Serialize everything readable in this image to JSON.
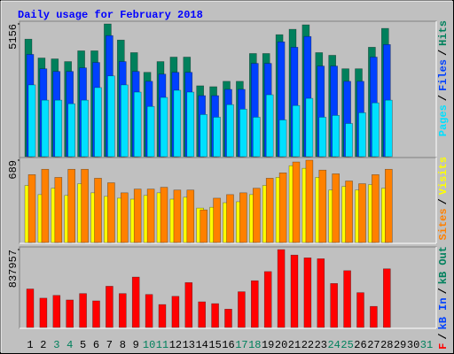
{
  "chart_data": [
    {
      "type": "bar",
      "title": "Daily usage for February 2018",
      "ylim": [
        0,
        5156
      ],
      "yticks": [
        5156
      ],
      "legend_separator": "/",
      "series": [
        {
          "name": "Hits",
          "color": "#00805c",
          "values": [
            4564,
            3832,
            3797,
            3693,
            4111,
            4111,
            5156,
            4529,
            4041,
            3275,
            3693,
            3867,
            3867,
            2752,
            2717,
            2926,
            2926,
            4006,
            4006,
            4738,
            4947,
            5121,
            4041,
            3937,
            3414,
            3414,
            4250,
            4982,
            null,
            null,
            null
          ]
        },
        {
          "name": "Files",
          "color": "#0040ff",
          "values": [
            3972,
            3414,
            3310,
            3310,
            3449,
            3658,
            4703,
            3693,
            3310,
            2926,
            3205,
            3275,
            3275,
            2369,
            2369,
            2613,
            2613,
            3623,
            3623,
            4459,
            4250,
            4668,
            3519,
            3519,
            2926,
            2926,
            3867,
            4355,
            null,
            null,
            null
          ]
        },
        {
          "name": "Pages",
          "color": "#00e0ff",
          "values": [
            2787,
            2195,
            2195,
            2056,
            2195,
            2683,
            3136,
            2787,
            2508,
            1951,
            2300,
            2578,
            2508,
            1637,
            1533,
            2021,
            1846,
            1533,
            2404,
            1428,
            1986,
            2265,
            1533,
            1603,
            1289,
            1707,
            2090,
            2195,
            null,
            null,
            null
          ]
        }
      ]
    },
    {
      "type": "bar",
      "ylim": [
        0,
        689
      ],
      "yticks": [
        689
      ],
      "legend_separator": "/",
      "series": [
        {
          "name": "Visits",
          "color": "#ffff00",
          "values": [
            477,
            401,
            454,
            394,
            492,
            416,
            386,
            371,
            363,
            394,
            416,
            363,
            379,
            288,
            295,
            333,
            341,
            401,
            477,
            545,
            643,
            621,
            545,
            439,
            469,
            439,
            484,
            454,
            null,
            null,
            null
          ]
        },
        {
          "name": "Sites",
          "color": "#ff8000",
          "values": [
            568,
            613,
            545,
            613,
            613,
            538,
            500,
            416,
            447,
            447,
            462,
            439,
            439,
            273,
            371,
            401,
            416,
            454,
            538,
            583,
            674,
            689,
            606,
            575,
            515,
            492,
            568,
            613,
            null,
            null,
            null
          ]
        }
      ]
    },
    {
      "type": "bar",
      "ylim": [
        0,
        837957
      ],
      "yticks": [
        837957
      ],
      "legend_separator": "/",
      "series": [
        {
          "name": "kB F",
          "color": "#ff0000",
          "values": [
            414036,
            315456,
            345030,
            295740,
            364746,
            285882,
            443610,
            364746,
            542190,
            354888,
            246450,
            335172,
            483042,
            276024,
            256308,
            197160,
            384462,
            502758,
            601338,
            837957,
            778782,
            749208,
            739350,
            473184,
            611196,
            374604,
            226734,
            630912,
            null,
            null,
            null
          ]
        }
      ],
      "legend_extra": [
        {
          "name": "kB In",
          "color": "#0040ff"
        },
        {
          "name": "kB Out",
          "color": "#00805c"
        }
      ],
      "categories": [
        "1",
        "2",
        "3",
        "4",
        "5",
        "6",
        "7",
        "8",
        "9",
        "10",
        "11",
        "12",
        "13",
        "14",
        "15",
        "16",
        "17",
        "18",
        "19",
        "20",
        "21",
        "22",
        "23",
        "24",
        "25",
        "26",
        "27",
        "28",
        "29",
        "30",
        "31"
      ],
      "category_colors": [
        "#000000",
        "#000000",
        "#00805c",
        "#00805c",
        "#000000",
        "#000000",
        "#000000",
        "#000000",
        "#000000",
        "#00805c",
        "#00805c",
        "#000000",
        "#000000",
        "#000000",
        "#000000",
        "#000000",
        "#00805c",
        "#00805c",
        "#000000",
        "#000000",
        "#000000",
        "#000000",
        "#000000",
        "#00805c",
        "#00805c",
        "#000000",
        "#000000",
        "#000000",
        "#000000",
        "#000000",
        "#00805c"
      ]
    }
  ]
}
